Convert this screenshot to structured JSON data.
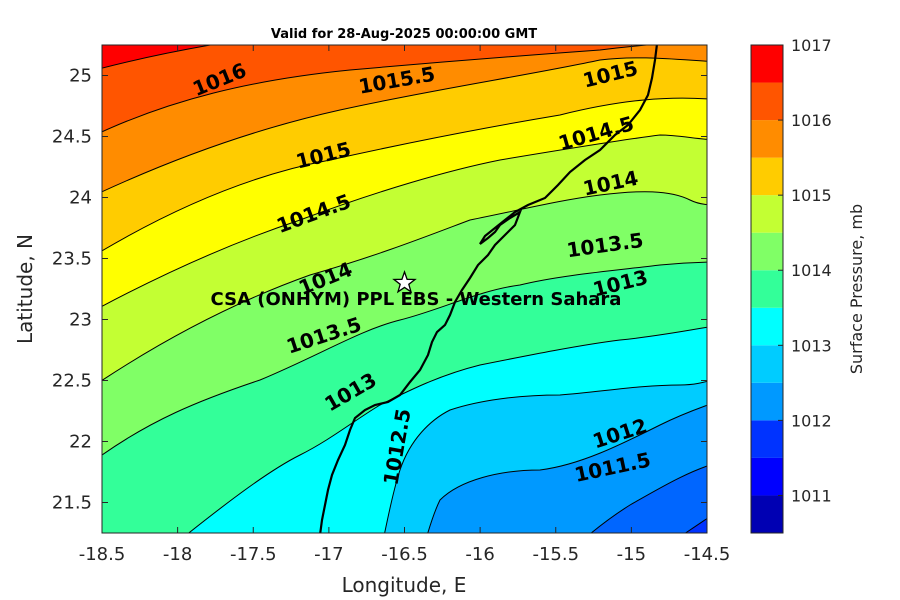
{
  "title": "Valid for 28-Aug-2025 00:00:00 GMT",
  "x_axis": {
    "label": "Longitude, E",
    "ticks": [
      "-18.5",
      "-18",
      "-17.5",
      "-17",
      "-16.5",
      "-16",
      "-15.5",
      "-15",
      "-14.5"
    ]
  },
  "y_axis": {
    "label": "Latitude, N",
    "ticks": [
      "21.5",
      "22",
      "22.5",
      "23",
      "23.5",
      "24",
      "24.5",
      "25"
    ]
  },
  "colorbar": {
    "label": "Surface Pressure, mb",
    "ticks": [
      "1011",
      "1012",
      "1013",
      "1014",
      "1015",
      "1016",
      "1017"
    ],
    "colors": [
      "#0000b3",
      "#0000ff",
      "#0033ff",
      "#0066ff",
      "#0099ff",
      "#00ccff",
      "#00ffff",
      "#33ff99",
      "#80ff66",
      "#c3ff33",
      "#ffff00",
      "#ffcc00",
      "#ff8c00",
      "#ff5500",
      "#ff0000"
    ]
  },
  "contour_labels": {
    "c1016": "1016",
    "c1015_5": "1015.5",
    "c1015_a": "1015",
    "c1015_b": "1015",
    "c1014_5_a": "1014.5",
    "c1014_5_b": "1014.5",
    "c1014_a": "1014",
    "c1014_b": "1014",
    "c1013_5_a": "1013.5",
    "c1013_5_b": "1013.5",
    "c1013_a": "1013",
    "c1013_b": "1013",
    "c1012_5": "1012.5",
    "c1012": "1012",
    "c1011_5": "1011.5"
  },
  "site": {
    "label": "CSA (ONHYM) PPL EBS - Western Sahara",
    "marker": "star-icon",
    "lon": -16.5,
    "lat": 23.3
  }
}
